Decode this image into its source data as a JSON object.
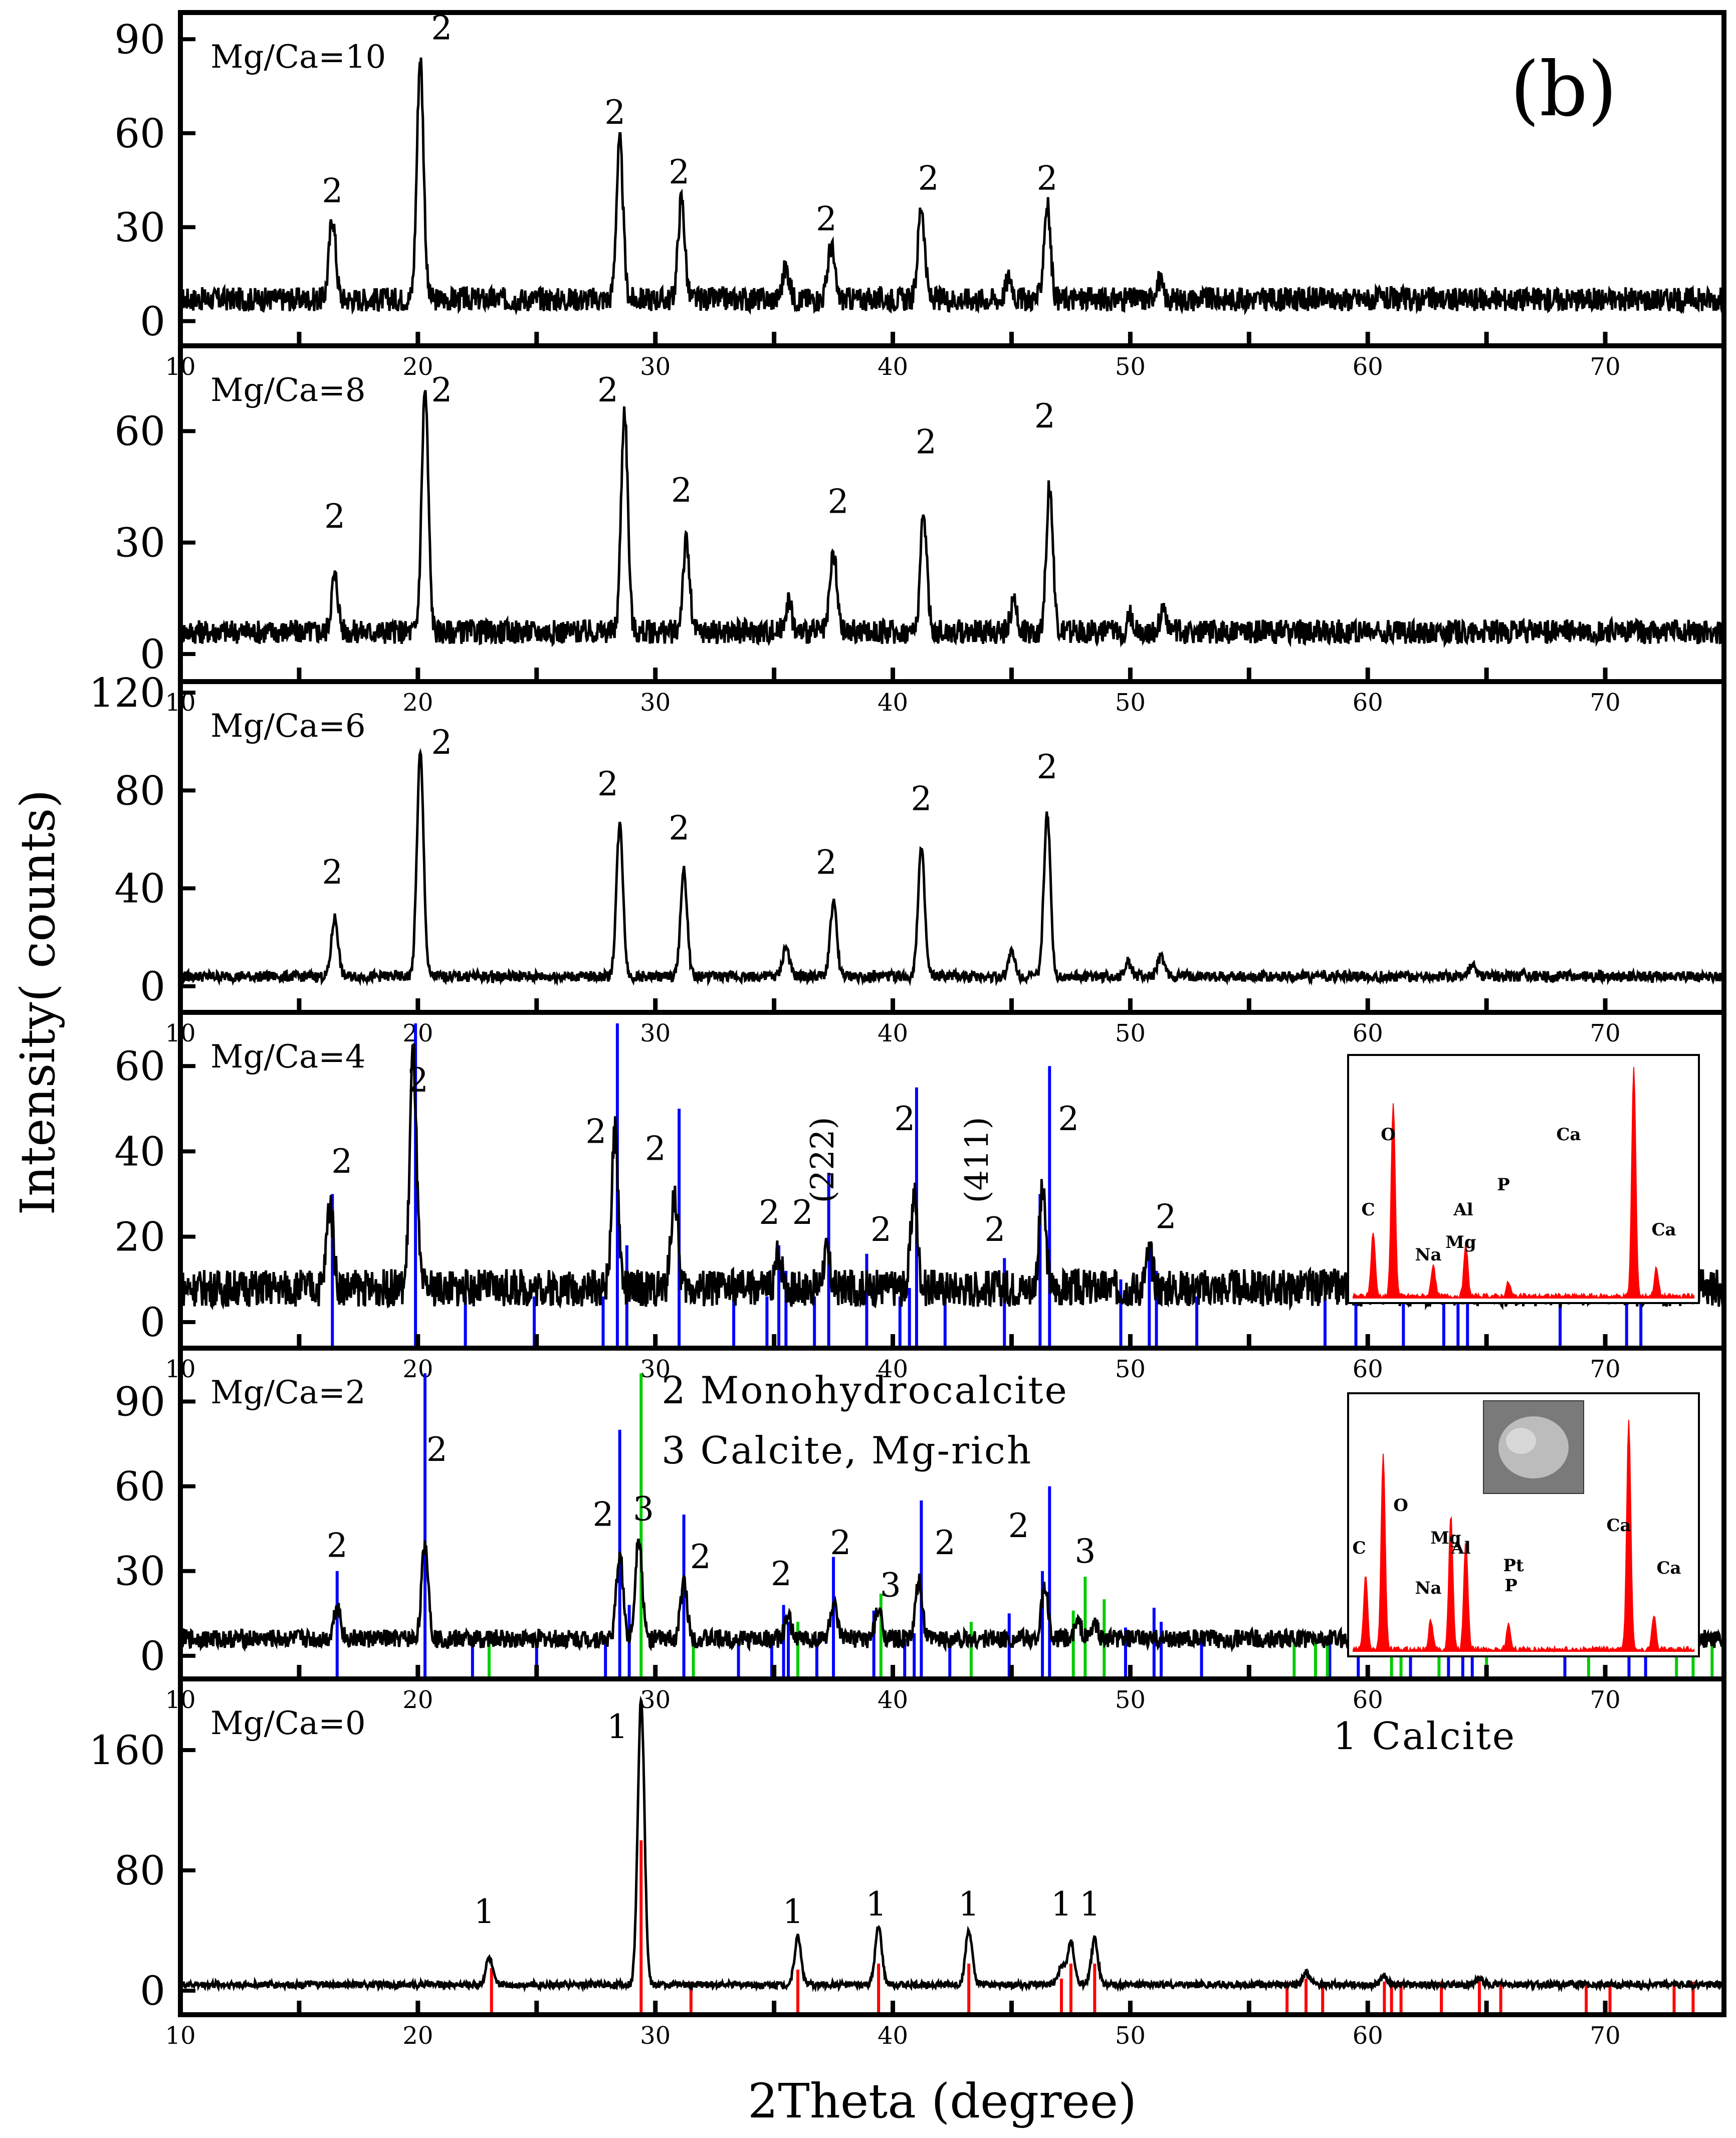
{
  "figure": {
    "panel_label": "(b)",
    "ylabel": "Intensity( counts)",
    "xlabel": "2Theta (degree)"
  },
  "colors": {
    "pattern": "#000000",
    "monohydrocalcite_ref": "#0000ff",
    "calcite_mg_rich_ref": "#00cc00",
    "calcite_ref": "#ff0000",
    "eds_spectrum": "#ff0000"
  },
  "chart_data": [
    {
      "type": "line",
      "label": "Mg/Ca=10",
      "xlim": [
        10,
        75
      ],
      "ylim": [
        -5,
        95
      ],
      "yticks": [
        0,
        30,
        60,
        90
      ],
      "xticks": [
        10,
        20,
        30,
        40,
        50,
        60,
        70
      ],
      "xtick_labels": [
        "10",
        "20",
        "30",
        "40",
        "50",
        "60",
        "70"
      ],
      "baseline": 7,
      "peaks": [
        [
          16.4,
          26
        ],
        [
          20.1,
          77
        ],
        [
          28.5,
          50
        ],
        [
          31.1,
          32
        ],
        [
          35.5,
          10
        ],
        [
          37.4,
          17
        ],
        [
          41.2,
          30
        ],
        [
          44.9,
          7
        ],
        [
          46.5,
          30
        ],
        [
          51.2,
          6
        ]
      ],
      "peak_labels": [
        {
          "text": "2",
          "x": 16.4,
          "y": 38
        },
        {
          "text": "2",
          "x": 21.0,
          "y": 90
        },
        {
          "text": "2",
          "x": 28.3,
          "y": 63
        },
        {
          "text": "2",
          "x": 31.0,
          "y": 44
        },
        {
          "text": "2",
          "x": 37.2,
          "y": 29
        },
        {
          "text": "2",
          "x": 41.5,
          "y": 42
        },
        {
          "text": "2",
          "x": 46.5,
          "y": 42
        }
      ],
      "references": []
    },
    {
      "type": "line",
      "label": "Mg/Ca=8",
      "xlim": [
        10,
        75
      ],
      "ylim": [
        -5,
        80
      ],
      "yticks": [
        0,
        30,
        60
      ],
      "xticks": [
        10,
        20,
        30,
        40,
        50,
        60,
        70
      ],
      "xtick_labels": [
        "10",
        "20",
        "30",
        "40",
        "50",
        "60",
        "70"
      ],
      "baseline": 6,
      "peaks": [
        [
          16.5,
          15
        ],
        [
          20.3,
          65
        ],
        [
          28.7,
          60
        ],
        [
          31.3,
          24
        ],
        [
          35.6,
          8
        ],
        [
          37.5,
          21
        ],
        [
          41.3,
          31
        ],
        [
          45.1,
          8
        ],
        [
          46.6,
          39
        ],
        [
          50.0,
          4
        ],
        [
          51.4,
          6
        ]
      ],
      "peak_labels": [
        {
          "text": "2",
          "x": 16.5,
          "y": 34
        },
        {
          "text": "2",
          "x": 21.0,
          "y": 68
        },
        {
          "text": "2",
          "x": 28.0,
          "y": 68
        },
        {
          "text": "2",
          "x": 31.1,
          "y": 41
        },
        {
          "text": "2",
          "x": 37.7,
          "y": 38
        },
        {
          "text": "2",
          "x": 41.4,
          "y": 54
        },
        {
          "text": "2",
          "x": 46.4,
          "y": 61
        }
      ],
      "references": []
    },
    {
      "type": "line",
      "label": "Mg/Ca=6",
      "xlim": [
        10,
        75
      ],
      "ylim": [
        -7,
        120
      ],
      "yticks": [
        0,
        40,
        80,
        120
      ],
      "xticks": [
        10,
        20,
        30,
        40,
        50,
        60,
        70
      ],
      "xtick_labels": [
        "10",
        "20",
        "30",
        "40",
        "50",
        "60",
        "70"
      ],
      "baseline": 4,
      "peaks": [
        [
          16.5,
          24
        ],
        [
          20.1,
          91
        ],
        [
          28.5,
          62
        ],
        [
          31.2,
          43
        ],
        [
          35.5,
          12
        ],
        [
          37.5,
          30
        ],
        [
          41.2,
          52
        ],
        [
          45.0,
          10
        ],
        [
          46.5,
          66
        ],
        [
          49.9,
          6
        ],
        [
          51.3,
          8
        ],
        [
          64.4,
          4
        ]
      ],
      "peak_labels": [
        {
          "text": "2",
          "x": 16.4,
          "y": 42
        },
        {
          "text": "2",
          "x": 21.0,
          "y": 95
        },
        {
          "text": "2",
          "x": 28.0,
          "y": 78
        },
        {
          "text": "2",
          "x": 31.0,
          "y": 60
        },
        {
          "text": "2",
          "x": 37.2,
          "y": 46
        },
        {
          "text": "2",
          "x": 41.2,
          "y": 72
        },
        {
          "text": "2",
          "x": 46.5,
          "y": 85
        }
      ],
      "references": []
    },
    {
      "type": "line",
      "label": "Mg/Ca=4",
      "xlim": [
        10,
        75
      ],
      "ylim": [
        -4,
        70
      ],
      "yticks": [
        0,
        20,
        40,
        60
      ],
      "xticks": [
        10,
        20,
        30,
        40,
        50,
        60,
        70
      ],
      "xtick_labels": [
        "10",
        "20",
        "30",
        "40",
        "50",
        "60",
        "70"
      ],
      "baseline": 8,
      "peaks": [
        [
          16.3,
          20
        ],
        [
          19.8,
          55
        ],
        [
          28.3,
          36
        ],
        [
          30.8,
          22
        ],
        [
          35.2,
          8
        ],
        [
          37.2,
          8
        ],
        [
          40.9,
          22
        ],
        [
          46.3,
          22
        ],
        [
          50.8,
          8
        ]
      ],
      "peak_labels": [
        {
          "text": "2",
          "x": 16.8,
          "y": 35
        },
        {
          "text": "2",
          "x": 20.0,
          "y": 54
        },
        {
          "text": "2",
          "x": 27.5,
          "y": 42
        },
        {
          "text": "2",
          "x": 30.0,
          "y": 38
        },
        {
          "text": "2",
          "x": 34.8,
          "y": 23
        },
        {
          "text": "2",
          "x": 36.2,
          "y": 23
        },
        {
          "text": "2",
          "x": 39.5,
          "y": 19
        },
        {
          "text": "2",
          "x": 40.5,
          "y": 45
        },
        {
          "text": "2",
          "x": 44.3,
          "y": 19
        },
        {
          "text": "2",
          "x": 47.4,
          "y": 45
        },
        {
          "text": "2",
          "x": 51.5,
          "y": 22
        }
      ],
      "references": [
        {
          "phase": "2",
          "color": "blue",
          "lines": [
            [
              16.4,
              30
            ],
            [
              19.9,
              70
            ],
            [
              22.0,
              6
            ],
            [
              24.9,
              6
            ],
            [
              27.8,
              6
            ],
            [
              28.4,
              70
            ],
            [
              28.8,
              18
            ],
            [
              31.0,
              50
            ],
            [
              33.3,
              6
            ],
            [
              34.7,
              6
            ],
            [
              35.2,
              18
            ],
            [
              35.5,
              12
            ],
            [
              36.7,
              6
            ],
            [
              37.3,
              35
            ],
            [
              38.9,
              16
            ],
            [
              40.3,
              6
            ],
            [
              40.7,
              8
            ],
            [
              41.0,
              55
            ],
            [
              42.2,
              6
            ],
            [
              44.7,
              15
            ],
            [
              46.2,
              30
            ],
            [
              46.6,
              60
            ],
            [
              49.6,
              10
            ],
            [
              50.8,
              17
            ],
            [
              51.1,
              12
            ],
            [
              52.8,
              6
            ],
            [
              58.2,
              6
            ],
            [
              59.5,
              6
            ],
            [
              61.5,
              6
            ],
            [
              63.2,
              6
            ],
            [
              63.8,
              6
            ],
            [
              64.2,
              6
            ],
            [
              68.1,
              6
            ],
            [
              70.9,
              6
            ],
            [
              71.5,
              6
            ]
          ]
        }
      ],
      "annotations": [
        {
          "text": "(222)",
          "x": 37.5,
          "y": 38
        },
        {
          "text": "(411)",
          "x": 44.0,
          "y": 38
        }
      ],
      "eds_inset": {
        "labels": [
          "C",
          "O",
          "Na",
          "Mg",
          "Al",
          "P",
          "Ca",
          "Ca"
        ]
      }
    },
    {
      "type": "line",
      "label": "Mg/Ca=2",
      "xlim": [
        10,
        75
      ],
      "ylim": [
        -5,
        105
      ],
      "yticks": [
        0,
        30,
        60,
        90
      ],
      "xticks": [
        10,
        20,
        30,
        40,
        50,
        60,
        70
      ],
      "xtick_labels": [
        "10",
        "20",
        "30",
        "40",
        "50",
        "60",
        "70"
      ],
      "baseline": 6,
      "peaks": [
        [
          16.6,
          12
        ],
        [
          20.3,
          34
        ],
        [
          28.5,
          30
        ],
        [
          29.3,
          37
        ],
        [
          31.2,
          20
        ],
        [
          35.6,
          7
        ],
        [
          37.5,
          12
        ],
        [
          39.4,
          10
        ],
        [
          41.1,
          20
        ],
        [
          46.4,
          18
        ],
        [
          47.8,
          6
        ],
        [
          48.5,
          5
        ]
      ],
      "peak_labels": [
        {
          "text": "2",
          "x": 16.6,
          "y": 35
        },
        {
          "text": "2",
          "x": 20.8,
          "y": 69
        },
        {
          "text": "2",
          "x": 27.8,
          "y": 46
        },
        {
          "text": "3",
          "x": 29.5,
          "y": 48
        },
        {
          "text": "2",
          "x": 31.9,
          "y": 31
        },
        {
          "text": "2",
          "x": 35.3,
          "y": 25
        },
        {
          "text": "2",
          "x": 37.8,
          "y": 36
        },
        {
          "text": "3",
          "x": 39.9,
          "y": 21
        },
        {
          "text": "2",
          "x": 42.2,
          "y": 36
        },
        {
          "text": "2",
          "x": 45.3,
          "y": 42
        },
        {
          "text": "3",
          "x": 48.1,
          "y": 33
        }
      ],
      "references": [
        {
          "phase": "2",
          "color": "blue",
          "lines": [
            [
              16.6,
              30
            ],
            [
              20.3,
              100
            ],
            [
              22.3,
              6
            ],
            [
              25.0,
              6
            ],
            [
              27.9,
              6
            ],
            [
              28.5,
              80
            ],
            [
              28.9,
              18
            ],
            [
              31.2,
              50
            ],
            [
              33.5,
              6
            ],
            [
              34.9,
              6
            ],
            [
              35.4,
              18
            ],
            [
              35.6,
              12
            ],
            [
              36.8,
              6
            ],
            [
              37.5,
              35
            ],
            [
              39.2,
              16
            ],
            [
              40.5,
              6
            ],
            [
              40.9,
              8
            ],
            [
              41.2,
              55
            ],
            [
              42.4,
              6
            ],
            [
              44.9,
              15
            ],
            [
              46.3,
              30
            ],
            [
              46.6,
              60
            ],
            [
              49.8,
              10
            ],
            [
              51.0,
              17
            ],
            [
              51.3,
              12
            ],
            [
              53.0,
              6
            ],
            [
              58.4,
              6
            ],
            [
              59.6,
              6
            ],
            [
              61.8,
              6
            ],
            [
              63.4,
              6
            ],
            [
              64.0,
              6
            ],
            [
              64.4,
              6
            ],
            [
              68.3,
              6
            ],
            [
              71.0,
              6
            ],
            [
              71.7,
              6
            ]
          ]
        },
        {
          "phase": "3",
          "color": "green",
          "lines": [
            [
              23.0,
              6
            ],
            [
              29.4,
              100
            ],
            [
              31.6,
              6
            ],
            [
              36.0,
              12
            ],
            [
              39.5,
              22
            ],
            [
              43.3,
              12
            ],
            [
              47.6,
              16
            ],
            [
              48.1,
              28
            ],
            [
              48.9,
              20
            ],
            [
              56.9,
              6
            ],
            [
              57.8,
              6
            ],
            [
              58.3,
              6
            ],
            [
              61.0,
              6
            ],
            [
              61.4,
              6
            ],
            [
              63.0,
              6
            ],
            [
              65.0,
              6
            ],
            [
              69.3,
              6
            ],
            [
              73.0,
              6
            ],
            [
              73.7,
              6
            ],
            [
              74.5,
              6
            ]
          ]
        }
      ],
      "legend": [
        "2 Monohydrocalcite",
        "3 Calcite, Mg-rich"
      ],
      "eds_inset": {
        "labels": [
          "C",
          "O",
          "Na",
          "Mg",
          "Al",
          "Pt",
          "P",
          "Ca",
          "Ca"
        ],
        "has_sem_image": true
      }
    },
    {
      "type": "line",
      "label": "Mg/Ca=0",
      "xlim": [
        10,
        75
      ],
      "ylim": [
        -10,
        200
      ],
      "yticks": [
        0,
        80,
        160
      ],
      "xticks": [
        10,
        20,
        30,
        40,
        50,
        60,
        70
      ],
      "xtick_labels": [
        "10",
        "20",
        "30",
        "40",
        "50",
        "60",
        "70"
      ],
      "baseline": 4,
      "peaks": [
        [
          23.0,
          18
        ],
        [
          29.4,
          190
        ],
        [
          36.0,
          32
        ],
        [
          39.4,
          38
        ],
        [
          43.2,
          36
        ],
        [
          47.1,
          12
        ],
        [
          47.5,
          28
        ],
        [
          48.5,
          30
        ],
        [
          57.4,
          8
        ],
        [
          60.7,
          6
        ],
        [
          64.7,
          4
        ]
      ],
      "peak_labels": [
        {
          "text": "1",
          "x": 22.8,
          "y": 45
        },
        {
          "text": "1",
          "x": 28.4,
          "y": 168
        },
        {
          "text": "1",
          "x": 35.8,
          "y": 45
        },
        {
          "text": "1",
          "x": 39.3,
          "y": 50
        },
        {
          "text": "1",
          "x": 43.2,
          "y": 50
        },
        {
          "text": "1",
          "x": 47.1,
          "y": 50
        },
        {
          "text": "1",
          "x": 48.3,
          "y": 50
        }
      ],
      "references": [
        {
          "phase": "1",
          "color": "red",
          "lines": [
            [
              23.1,
              15
            ],
            [
              29.4,
              100
            ],
            [
              31.5,
              6
            ],
            [
              36.0,
              14
            ],
            [
              39.4,
              18
            ],
            [
              43.2,
              18
            ],
            [
              47.1,
              8
            ],
            [
              47.5,
              18
            ],
            [
              48.5,
              18
            ],
            [
              56.6,
              6
            ],
            [
              57.4,
              8
            ],
            [
              58.1,
              6
            ],
            [
              60.7,
              6
            ],
            [
              61.0,
              6
            ],
            [
              61.4,
              6
            ],
            [
              63.1,
              6
            ],
            [
              64.7,
              6
            ],
            [
              65.6,
              6
            ],
            [
              69.2,
              6
            ],
            [
              70.2,
              6
            ],
            [
              72.9,
              6
            ],
            [
              73.7,
              6
            ]
          ]
        }
      ],
      "legend": [
        "1 Calcite"
      ]
    }
  ]
}
